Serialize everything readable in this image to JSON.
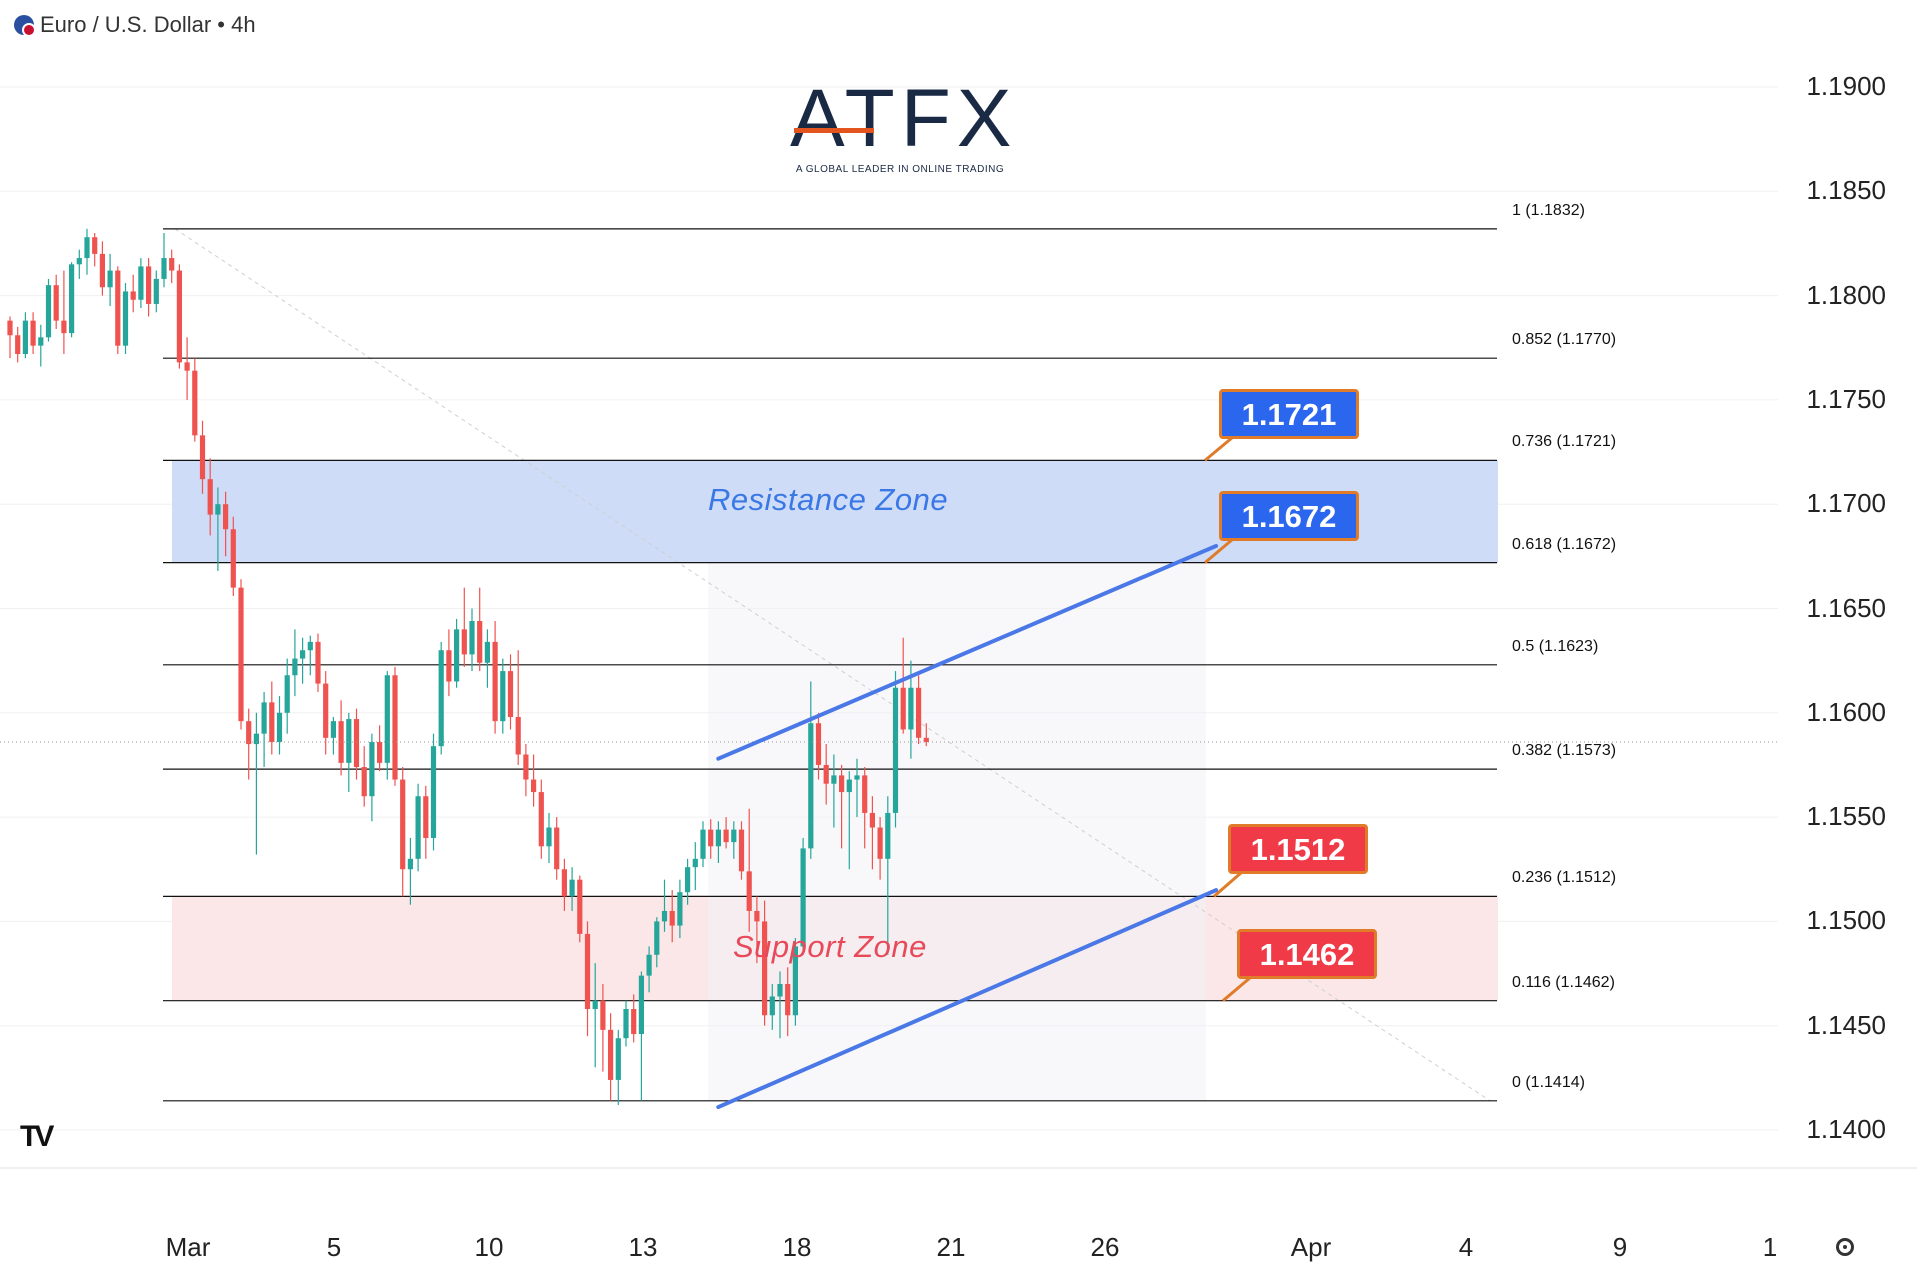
{
  "header": {
    "symbol": "Euro / U.S. Dollar",
    "separator": "/",
    "interval": "4h",
    "text": "Euro / U.S. Dollar • 4h"
  },
  "logo": {
    "name": "ATFX",
    "tagline": "A GLOBAL LEADER IN ONLINE TRADING"
  },
  "chart_data": {
    "type": "candlestick",
    "title": "",
    "y_ticks": [
      "1.1900",
      "1.1850",
      "1.1800",
      "1.1750",
      "1.1700",
      "1.1650",
      "1.1600",
      "1.1550",
      "1.1500",
      "1.1450",
      "1.1400"
    ],
    "x_ticks": [
      "Mar",
      "5",
      "10",
      "13",
      "18",
      "21",
      "26",
      "Apr",
      "4",
      "9",
      "1"
    ],
    "ylim": [
      1.1388,
      1.1918
    ],
    "fib_levels": [
      {
        "ratio": "1",
        "price": 1.1832,
        "label": "1 (1.1832)"
      },
      {
        "ratio": "0.852",
        "price": 1.177,
        "label": "0.852 (1.1770)"
      },
      {
        "ratio": "0.736",
        "price": 1.1721,
        "label": "0.736 (1.1721)"
      },
      {
        "ratio": "0.618",
        "price": 1.1672,
        "label": "0.618 (1.1672)"
      },
      {
        "ratio": "0.5",
        "price": 1.1623,
        "label": "0.5 (1.1623)"
      },
      {
        "ratio": "0.382",
        "price": 1.1573,
        "label": "0.382 (1.1573)"
      },
      {
        "ratio": "0.236",
        "price": 1.1512,
        "label": "0.236 (1.1512)"
      },
      {
        "ratio": "0.116",
        "price": 1.1462,
        "label": "0.116 (1.1462)"
      },
      {
        "ratio": "0",
        "price": 1.1414,
        "label": "0 (1.1414)"
      }
    ],
    "zones": [
      {
        "name": "Resistance Zone",
        "from": 1.1672,
        "to": 1.1721,
        "color": "#c9d8f6",
        "text_color": "#3a78e6"
      },
      {
        "name": "Support Zone",
        "from": 1.1462,
        "to": 1.1512,
        "color": "#fbe4e4",
        "text_color": "#e84a5a"
      }
    ],
    "callouts": [
      {
        "text": "1.1721",
        "price": 1.1721,
        "color": "#2b67ee"
      },
      {
        "text": "1.1672",
        "price": 1.1672,
        "color": "#2b67ee"
      },
      {
        "text": "1.1512",
        "price": 1.1512,
        "color": "#f03a48"
      },
      {
        "text": "1.1462",
        "price": 1.1462,
        "color": "#f03a48"
      }
    ],
    "channel": {
      "upper": [
        {
          "i": 79,
          "price": 1.1578
        },
        {
          "i": 133,
          "price": 1.168
        }
      ],
      "lower": [
        {
          "i": 79,
          "price": 1.1411
        },
        {
          "i": 133,
          "price": 1.1515
        }
      ],
      "color": "#4a78e6"
    },
    "last_price": 1.1586,
    "colors": {
      "up": "#26a69a",
      "down": "#ef5350"
    },
    "candles_note": "4h candles",
    "candles": [
      [
        1.1788,
        1.179,
        1.177,
        1.1781
      ],
      [
        1.1781,
        1.1785,
        1.1768,
        1.1772
      ],
      [
        1.1772,
        1.1792,
        1.177,
        1.1788
      ],
      [
        1.1788,
        1.1792,
        1.1772,
        1.1776
      ],
      [
        1.1776,
        1.1786,
        1.1766,
        1.178
      ],
      [
        1.178,
        1.1808,
        1.1778,
        1.1805
      ],
      [
        1.1805,
        1.181,
        1.1784,
        1.1788
      ],
      [
        1.1788,
        1.1812,
        1.1772,
        1.1782
      ],
      [
        1.1782,
        1.1816,
        1.178,
        1.1815
      ],
      [
        1.1815,
        1.1822,
        1.1808,
        1.1818
      ],
      [
        1.1818,
        1.1832,
        1.181,
        1.1828
      ],
      [
        1.1828,
        1.183,
        1.1814,
        1.182
      ],
      [
        1.182,
        1.1826,
        1.18,
        1.1804
      ],
      [
        1.1804,
        1.182,
        1.1795,
        1.1812
      ],
      [
        1.1812,
        1.1814,
        1.1772,
        1.1776
      ],
      [
        1.1776,
        1.1806,
        1.1772,
        1.1802
      ],
      [
        1.1802,
        1.181,
        1.1792,
        1.1798
      ],
      [
        1.1798,
        1.1818,
        1.1794,
        1.1814
      ],
      [
        1.1814,
        1.1818,
        1.179,
        1.1796
      ],
      [
        1.1796,
        1.1812,
        1.1792,
        1.1808
      ],
      [
        1.1808,
        1.183,
        1.1804,
        1.1818
      ],
      [
        1.1818,
        1.1822,
        1.1806,
        1.1812
      ],
      [
        1.1812,
        1.1815,
        1.1765,
        1.1768
      ],
      [
        1.1768,
        1.178,
        1.175,
        1.1764
      ],
      [
        1.1764,
        1.177,
        1.173,
        1.1733
      ],
      [
        1.1733,
        1.174,
        1.1705,
        1.1712
      ],
      [
        1.1712,
        1.1722,
        1.1685,
        1.1695
      ],
      [
        1.1695,
        1.1708,
        1.1668,
        1.17
      ],
      [
        1.17,
        1.1706,
        1.1675,
        1.1688
      ],
      [
        1.1688,
        1.1694,
        1.1656,
        1.166
      ],
      [
        1.166,
        1.1664,
        1.1592,
        1.1596
      ],
      [
        1.1596,
        1.1602,
        1.1568,
        1.1585
      ],
      [
        1.1585,
        1.16,
        1.1532,
        1.159
      ],
      [
        1.159,
        1.161,
        1.1574,
        1.1605
      ],
      [
        1.1605,
        1.1615,
        1.158,
        1.1586
      ],
      [
        1.1586,
        1.1608,
        1.158,
        1.16
      ],
      [
        1.16,
        1.1626,
        1.159,
        1.1618
      ],
      [
        1.1618,
        1.164,
        1.1608,
        1.1626
      ],
      [
        1.1626,
        1.1636,
        1.1614,
        1.163
      ],
      [
        1.163,
        1.1637,
        1.1618,
        1.1634
      ],
      [
        1.1634,
        1.1638,
        1.161,
        1.1614
      ],
      [
        1.1614,
        1.162,
        1.158,
        1.1588
      ],
      [
        1.1588,
        1.1598,
        1.158,
        1.1596
      ],
      [
        1.1596,
        1.1606,
        1.157,
        1.1576
      ],
      [
        1.1576,
        1.16,
        1.1562,
        1.1597
      ],
      [
        1.1597,
        1.1602,
        1.1568,
        1.1574
      ],
      [
        1.1574,
        1.1584,
        1.1555,
        1.156
      ],
      [
        1.156,
        1.159,
        1.1548,
        1.1586
      ],
      [
        1.1586,
        1.1594,
        1.1572,
        1.1576
      ],
      [
        1.1576,
        1.162,
        1.1568,
        1.1618
      ],
      [
        1.1618,
        1.1622,
        1.1565,
        1.1568
      ],
      [
        1.1568,
        1.1574,
        1.1512,
        1.1525
      ],
      [
        1.1525,
        1.154,
        1.1508,
        1.153
      ],
      [
        1.153,
        1.1566,
        1.1524,
        1.156
      ],
      [
        1.156,
        1.1565,
        1.153,
        1.154
      ],
      [
        1.154,
        1.159,
        1.1534,
        1.1584
      ],
      [
        1.1584,
        1.1634,
        1.158,
        1.163
      ],
      [
        1.163,
        1.164,
        1.1608,
        1.1615
      ],
      [
        1.1615,
        1.1645,
        1.1612,
        1.164
      ],
      [
        1.164,
        1.166,
        1.1622,
        1.1628
      ],
      [
        1.1628,
        1.165,
        1.162,
        1.1644
      ],
      [
        1.1644,
        1.166,
        1.162,
        1.1624
      ],
      [
        1.1624,
        1.164,
        1.1612,
        1.1634
      ],
      [
        1.1634,
        1.1644,
        1.159,
        1.1596
      ],
      [
        1.1596,
        1.1626,
        1.159,
        1.162
      ],
      [
        1.162,
        1.1628,
        1.1592,
        1.1598
      ],
      [
        1.1598,
        1.163,
        1.1575,
        1.158
      ],
      [
        1.158,
        1.1585,
        1.156,
        1.1568
      ],
      [
        1.1568,
        1.158,
        1.1555,
        1.1562
      ],
      [
        1.1562,
        1.1568,
        1.153,
        1.1536
      ],
      [
        1.1536,
        1.1552,
        1.1528,
        1.1545
      ],
      [
        1.1545,
        1.155,
        1.152,
        1.1525
      ],
      [
        1.1525,
        1.153,
        1.1505,
        1.1512
      ],
      [
        1.1512,
        1.1526,
        1.1505,
        1.152
      ],
      [
        1.152,
        1.1522,
        1.149,
        1.1494
      ],
      [
        1.1494,
        1.15,
        1.1445,
        1.1458
      ],
      [
        1.1458,
        1.148,
        1.143,
        1.1462
      ],
      [
        1.1462,
        1.147,
        1.1428,
        1.1448
      ],
      [
        1.1448,
        1.1456,
        1.1414,
        1.1424
      ],
      [
        1.1424,
        1.1448,
        1.1412,
        1.1444
      ],
      [
        1.1444,
        1.1462,
        1.144,
        1.1458
      ],
      [
        1.1458,
        1.1465,
        1.1442,
        1.1446
      ],
      [
        1.1446,
        1.1476,
        1.1414,
        1.1474
      ],
      [
        1.1474,
        1.1488,
        1.1466,
        1.1484
      ],
      [
        1.1484,
        1.1502,
        1.1478,
        1.15
      ],
      [
        1.15,
        1.152,
        1.1495,
        1.1505
      ],
      [
        1.1505,
        1.1515,
        1.149,
        1.1498
      ],
      [
        1.1498,
        1.152,
        1.1492,
        1.1514
      ],
      [
        1.1514,
        1.153,
        1.1508,
        1.1526
      ],
      [
        1.1526,
        1.1538,
        1.1515,
        1.153
      ],
      [
        1.153,
        1.1548,
        1.1526,
        1.1544
      ],
      [
        1.1544,
        1.1549,
        1.153,
        1.1536
      ],
      [
        1.1536,
        1.1548,
        1.1528,
        1.1544
      ],
      [
        1.1544,
        1.155,
        1.1535,
        1.1538
      ],
      [
        1.1538,
        1.1548,
        1.153,
        1.1544
      ],
      [
        1.1544,
        1.1548,
        1.152,
        1.1524
      ],
      [
        1.1524,
        1.1554,
        1.1495,
        1.1505
      ],
      [
        1.1505,
        1.1512,
        1.148,
        1.15
      ],
      [
        1.15,
        1.151,
        1.145,
        1.1455
      ],
      [
        1.1455,
        1.147,
        1.1448,
        1.1464
      ],
      [
        1.1464,
        1.1476,
        1.1444,
        1.147
      ],
      [
        1.147,
        1.1478,
        1.1445,
        1.1455
      ],
      [
        1.1455,
        1.1492,
        1.145,
        1.1488
      ],
      [
        1.1488,
        1.154,
        1.1484,
        1.1535
      ],
      [
        1.1535,
        1.1615,
        1.153,
        1.1595
      ],
      [
        1.1595,
        1.16,
        1.1568,
        1.1575
      ],
      [
        1.1575,
        1.1585,
        1.1556,
        1.1566
      ],
      [
        1.1566,
        1.158,
        1.1545,
        1.157
      ],
      [
        1.157,
        1.1575,
        1.1535,
        1.1562
      ],
      [
        1.1562,
        1.1572,
        1.1525,
        1.1568
      ],
      [
        1.1568,
        1.1578,
        1.155,
        1.157
      ],
      [
        1.157,
        1.1574,
        1.1535,
        1.1552
      ],
      [
        1.1552,
        1.156,
        1.1525,
        1.1545
      ],
      [
        1.1545,
        1.155,
        1.152,
        1.153
      ],
      [
        1.153,
        1.156,
        1.1484,
        1.1552
      ],
      [
        1.1552,
        1.162,
        1.1545,
        1.1612
      ],
      [
        1.1612,
        1.1636,
        1.159,
        1.1592
      ],
      [
        1.1592,
        1.1625,
        1.1578,
        1.1612
      ],
      [
        1.1612,
        1.1618,
        1.1585,
        1.1588
      ],
      [
        1.1588,
        1.1595,
        1.1584,
        1.1586
      ]
    ]
  }
}
